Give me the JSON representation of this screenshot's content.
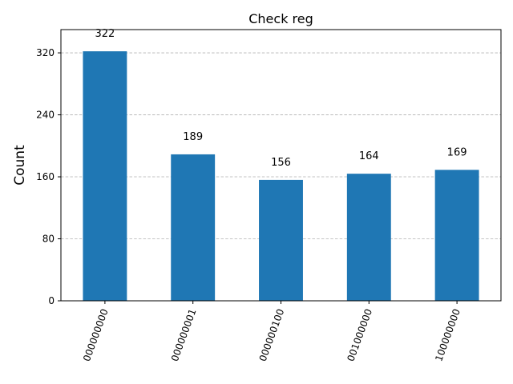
{
  "chart_data": {
    "type": "bar",
    "title": "Check reg",
    "xlabel": "",
    "ylabel": "Count",
    "categories": [
      "000000000",
      "000000001",
      "000000100",
      "001000000",
      "100000000"
    ],
    "values": [
      322,
      189,
      156,
      164,
      169
    ],
    "ylim": [
      0,
      350
    ],
    "yticks": [
      0,
      80,
      160,
      240,
      320
    ],
    "grid": true,
    "bar_color": "#1f77b4"
  }
}
